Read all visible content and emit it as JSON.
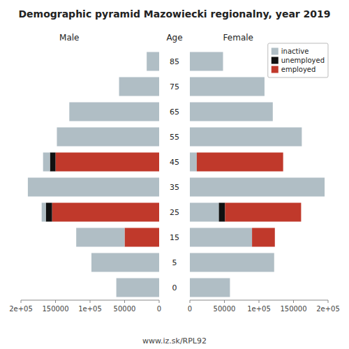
{
  "chart_data": [
    {
      "type": "bar",
      "orientation": "horizontal",
      "stacked": true,
      "title": "Demographic pyramid Mazowiecki regionalny, year 2019",
      "xlabel": "Male",
      "ylabel": "Age",
      "categories": [
        "85",
        "75",
        "65",
        "55",
        "45",
        "35",
        "25",
        "15",
        "5",
        "0"
      ],
      "xlim": [
        200000,
        0
      ],
      "xticks": [
        0,
        50000,
        {
          "value": 100000,
          "label": "1e+05"
        },
        150000,
        {
          "value": 200000,
          "label": "2e+05"
        }
      ],
      "series": [
        {
          "name": "employed",
          "color": "#c0392b",
          "values": [
            0,
            0,
            0,
            0,
            150000,
            0,
            155000,
            50000,
            0,
            0
          ]
        },
        {
          "name": "unemployed",
          "color": "#111111",
          "values": [
            0,
            0,
            0,
            0,
            8000,
            0,
            9000,
            0,
            0,
            0
          ]
        },
        {
          "name": "inactive",
          "color": "#b0bec5",
          "values": [
            18000,
            58000,
            130000,
            148000,
            10000,
            190000,
            6000,
            70000,
            98000,
            62000
          ]
        }
      ],
      "annotations": [
        {
          "text": "www.iz.sk/RPL92"
        }
      ]
    },
    {
      "type": "bar",
      "orientation": "horizontal",
      "stacked": true,
      "xlabel": "Female",
      "xlim": [
        0,
        200000
      ],
      "xticks": [
        0,
        50000,
        {
          "value": 100000,
          "label": "1e+05"
        },
        150000,
        {
          "value": 200000,
          "label": "2e+05"
        }
      ],
      "legend": "upper right",
      "series": [
        {
          "name": "inactive",
          "color": "#b0bec5",
          "values": [
            48000,
            108000,
            120000,
            162000,
            10000,
            195000,
            42000,
            90000,
            122000,
            58000
          ]
        },
        {
          "name": "unemployed",
          "color": "#111111",
          "values": [
            0,
            0,
            0,
            0,
            0,
            0,
            9000,
            0,
            0,
            0
          ]
        },
        {
          "name": "employed",
          "color": "#c0392b",
          "values": [
            0,
            0,
            0,
            0,
            125000,
            0,
            110000,
            33000,
            0,
            0
          ]
        }
      ]
    }
  ]
}
